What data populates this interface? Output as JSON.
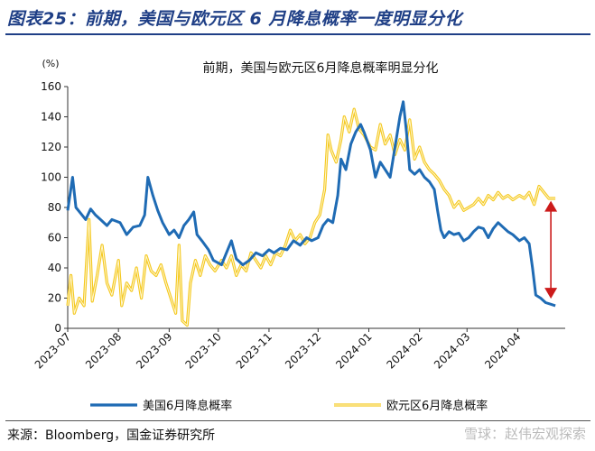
{
  "figure_title": "图表25：前期，美国与欧元区 6 月降息概率一度明显分化",
  "source": "来源：Bloomberg，国金证券研究所",
  "watermark": "雪球：赵伟宏观探索",
  "colors": {
    "us": "#1f6bb4",
    "eu": "#f4c81f",
    "arrow": "#cc1a1a",
    "title": "#1f3f86"
  },
  "chart_data": {
    "type": "line",
    "title": "前期，美国与欧元区6月降息概率明显分化",
    "ylabel": "(%)",
    "ylim": [
      0,
      160
    ],
    "yticks": [
      0,
      20,
      40,
      60,
      80,
      100,
      120,
      140,
      160
    ],
    "xlim": [
      "2023-07-01",
      "2024-04-30"
    ],
    "xticks": [
      "2023-07",
      "2023-08",
      "2023-09",
      "2023-10",
      "2023-11",
      "2023-12",
      "2024-01",
      "2024-02",
      "2024-03",
      "2024-04"
    ],
    "legend_position": "bottom",
    "annotation": "double-headed arrow at 2024-04-24 between the two series",
    "series": [
      {
        "name": "美国6月降息概率",
        "color": "#1f6bb4",
        "points": [
          [
            "2023-07-01",
            78
          ],
          [
            "2023-07-04",
            100
          ],
          [
            "2023-07-06",
            80
          ],
          [
            "2023-07-09",
            76
          ],
          [
            "2023-07-12",
            72
          ],
          [
            "2023-07-15",
            79
          ],
          [
            "2023-07-18",
            75
          ],
          [
            "2023-07-21",
            72
          ],
          [
            "2023-07-25",
            68
          ],
          [
            "2023-07-28",
            72
          ],
          [
            "2023-08-02",
            70
          ],
          [
            "2023-08-06",
            62
          ],
          [
            "2023-08-10",
            67
          ],
          [
            "2023-08-14",
            68
          ],
          [
            "2023-08-17",
            75
          ],
          [
            "2023-08-19",
            100
          ],
          [
            "2023-08-22",
            88
          ],
          [
            "2023-08-25",
            78
          ],
          [
            "2023-08-28",
            70
          ],
          [
            "2023-09-01",
            62
          ],
          [
            "2023-09-04",
            65
          ],
          [
            "2023-09-07",
            60
          ],
          [
            "2023-09-10",
            68
          ],
          [
            "2023-09-13",
            72
          ],
          [
            "2023-09-16",
            77
          ],
          [
            "2023-09-18",
            62
          ],
          [
            "2023-09-21",
            58
          ],
          [
            "2023-09-25",
            52
          ],
          [
            "2023-09-28",
            45
          ],
          [
            "2023-10-03",
            42
          ],
          [
            "2023-10-06",
            50
          ],
          [
            "2023-10-09",
            58
          ],
          [
            "2023-10-12",
            46
          ],
          [
            "2023-10-16",
            42
          ],
          [
            "2023-10-20",
            45
          ],
          [
            "2023-10-24",
            50
          ],
          [
            "2023-10-28",
            48
          ],
          [
            "2023-11-01",
            52
          ],
          [
            "2023-11-04",
            50
          ],
          [
            "2023-11-08",
            53
          ],
          [
            "2023-11-12",
            52
          ],
          [
            "2023-11-16",
            58
          ],
          [
            "2023-11-20",
            55
          ],
          [
            "2023-11-24",
            60
          ],
          [
            "2023-11-27",
            58
          ],
          [
            "2023-12-01",
            60
          ],
          [
            "2023-12-04",
            68
          ],
          [
            "2023-12-07",
            72
          ],
          [
            "2023-12-10",
            70
          ],
          [
            "2023-12-13",
            88
          ],
          [
            "2023-12-15",
            112
          ],
          [
            "2023-12-18",
            105
          ],
          [
            "2023-12-21",
            122
          ],
          [
            "2023-12-24",
            130
          ],
          [
            "2023-12-27",
            135
          ],
          [
            "2023-12-29",
            130
          ],
          [
            "2024-01-02",
            118
          ],
          [
            "2024-01-05",
            100
          ],
          [
            "2024-01-08",
            110
          ],
          [
            "2024-01-11",
            105
          ],
          [
            "2024-01-14",
            100
          ],
          [
            "2024-01-17",
            120
          ],
          [
            "2024-01-20",
            140
          ],
          [
            "2024-01-22",
            150
          ],
          [
            "2024-01-24",
            130
          ],
          [
            "2024-01-26",
            105
          ],
          [
            "2024-01-29",
            102
          ],
          [
            "2024-02-01",
            105
          ],
          [
            "2024-02-04",
            100
          ],
          [
            "2024-02-07",
            97
          ],
          [
            "2024-02-10",
            92
          ],
          [
            "2024-02-12",
            78
          ],
          [
            "2024-02-14",
            65
          ],
          [
            "2024-02-16",
            60
          ],
          [
            "2024-02-19",
            64
          ],
          [
            "2024-02-22",
            62
          ],
          [
            "2024-02-25",
            63
          ],
          [
            "2024-02-28",
            58
          ],
          [
            "2024-03-02",
            60
          ],
          [
            "2024-03-05",
            64
          ],
          [
            "2024-03-08",
            67
          ],
          [
            "2024-03-11",
            66
          ],
          [
            "2024-03-14",
            60
          ],
          [
            "2024-03-17",
            66
          ],
          [
            "2024-03-20",
            70
          ],
          [
            "2024-03-23",
            67
          ],
          [
            "2024-03-26",
            64
          ],
          [
            "2024-03-29",
            62
          ],
          [
            "2024-04-02",
            58
          ],
          [
            "2024-04-05",
            60
          ],
          [
            "2024-04-08",
            56
          ],
          [
            "2024-04-10",
            40
          ],
          [
            "2024-04-12",
            22
          ],
          [
            "2024-04-15",
            20
          ],
          [
            "2024-04-18",
            17
          ],
          [
            "2024-04-21",
            16
          ],
          [
            "2024-04-24",
            15
          ]
        ]
      },
      {
        "name": "欧元区6月降息概率",
        "color": "#f4c81f",
        "points": [
          [
            "2023-07-01",
            15
          ],
          [
            "2023-07-03",
            35
          ],
          [
            "2023-07-05",
            10
          ],
          [
            "2023-07-08",
            20
          ],
          [
            "2023-07-11",
            15
          ],
          [
            "2023-07-14",
            72
          ],
          [
            "2023-07-16",
            18
          ],
          [
            "2023-07-19",
            35
          ],
          [
            "2023-07-22",
            55
          ],
          [
            "2023-07-25",
            30
          ],
          [
            "2023-07-28",
            22
          ],
          [
            "2023-08-01",
            45
          ],
          [
            "2023-08-03",
            15
          ],
          [
            "2023-08-06",
            30
          ],
          [
            "2023-08-09",
            25
          ],
          [
            "2023-08-12",
            40
          ],
          [
            "2023-08-15",
            20
          ],
          [
            "2023-08-18",
            48
          ],
          [
            "2023-08-21",
            38
          ],
          [
            "2023-08-24",
            35
          ],
          [
            "2023-08-27",
            42
          ],
          [
            "2023-08-30",
            30
          ],
          [
            "2023-09-02",
            20
          ],
          [
            "2023-09-05",
            10
          ],
          [
            "2023-09-07",
            55
          ],
          [
            "2023-09-09",
            5
          ],
          [
            "2023-09-12",
            2
          ],
          [
            "2023-09-14",
            30
          ],
          [
            "2023-09-17",
            45
          ],
          [
            "2023-09-20",
            35
          ],
          [
            "2023-09-23",
            48
          ],
          [
            "2023-09-26",
            42
          ],
          [
            "2023-09-29",
            38
          ],
          [
            "2023-10-03",
            45
          ],
          [
            "2023-10-06",
            40
          ],
          [
            "2023-10-09",
            48
          ],
          [
            "2023-10-12",
            35
          ],
          [
            "2023-10-15",
            42
          ],
          [
            "2023-10-18",
            38
          ],
          [
            "2023-10-21",
            50
          ],
          [
            "2023-10-24",
            45
          ],
          [
            "2023-10-27",
            40
          ],
          [
            "2023-10-30",
            48
          ],
          [
            "2023-11-02",
            42
          ],
          [
            "2023-11-05",
            50
          ],
          [
            "2023-11-08",
            48
          ],
          [
            "2023-11-11",
            55
          ],
          [
            "2023-11-14",
            65
          ],
          [
            "2023-11-17",
            58
          ],
          [
            "2023-11-20",
            62
          ],
          [
            "2023-11-23",
            56
          ],
          [
            "2023-11-26",
            60
          ],
          [
            "2023-11-29",
            70
          ],
          [
            "2023-12-02",
            75
          ],
          [
            "2023-12-05",
            92
          ],
          [
            "2023-12-07",
            128
          ],
          [
            "2023-12-09",
            118
          ],
          [
            "2023-12-12",
            110
          ],
          [
            "2023-12-15",
            125
          ],
          [
            "2023-12-17",
            140
          ],
          [
            "2023-12-20",
            130
          ],
          [
            "2023-12-23",
            145
          ],
          [
            "2023-12-26",
            132
          ],
          [
            "2023-12-29",
            128
          ],
          [
            "2024-01-02",
            120
          ],
          [
            "2024-01-05",
            118
          ],
          [
            "2024-01-08",
            135
          ],
          [
            "2024-01-11",
            122
          ],
          [
            "2024-01-14",
            128
          ],
          [
            "2024-01-17",
            115
          ],
          [
            "2024-01-20",
            125
          ],
          [
            "2024-01-23",
            118
          ],
          [
            "2024-01-26",
            138
          ],
          [
            "2024-01-29",
            112
          ],
          [
            "2024-02-01",
            120
          ],
          [
            "2024-02-04",
            110
          ],
          [
            "2024-02-07",
            105
          ],
          [
            "2024-02-10",
            102
          ],
          [
            "2024-02-13",
            98
          ],
          [
            "2024-02-16",
            92
          ],
          [
            "2024-02-19",
            88
          ],
          [
            "2024-02-22",
            80
          ],
          [
            "2024-02-25",
            84
          ],
          [
            "2024-02-28",
            78
          ],
          [
            "2024-03-02",
            80
          ],
          [
            "2024-03-05",
            82
          ],
          [
            "2024-03-08",
            86
          ],
          [
            "2024-03-11",
            82
          ],
          [
            "2024-03-14",
            88
          ],
          [
            "2024-03-17",
            85
          ],
          [
            "2024-03-20",
            90
          ],
          [
            "2024-03-23",
            86
          ],
          [
            "2024-03-26",
            88
          ],
          [
            "2024-03-29",
            85
          ],
          [
            "2024-04-02",
            88
          ],
          [
            "2024-04-05",
            86
          ],
          [
            "2024-04-08",
            90
          ],
          [
            "2024-04-11",
            82
          ],
          [
            "2024-04-14",
            94
          ],
          [
            "2024-04-17",
            90
          ],
          [
            "2024-04-20",
            86
          ],
          [
            "2024-04-24",
            86
          ]
        ]
      }
    ]
  }
}
